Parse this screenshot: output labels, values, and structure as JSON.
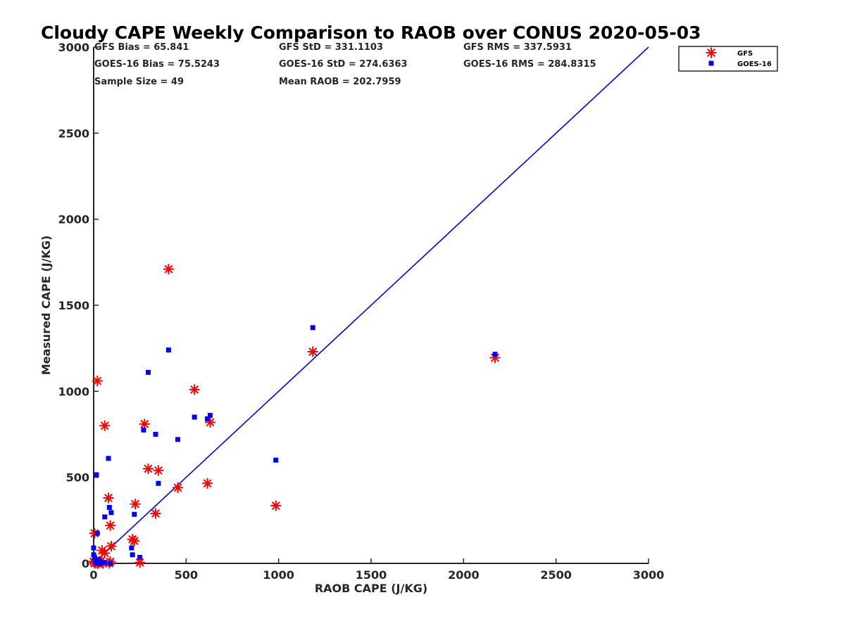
{
  "chart_data": {
    "type": "scatter",
    "title": "Cloudy CAPE Weekly Comparison to RAOB over CONUS 2020-05-03",
    "xlabel": "RAOB CAPE (J/KG)",
    "ylabel": "Measured CAPE (J/KG)",
    "xlim": [
      0,
      3000
    ],
    "ylim": [
      0,
      3000
    ],
    "xticks": [
      "0",
      "500",
      "1000",
      "1500",
      "2000",
      "2500",
      "3000"
    ],
    "yticks": [
      "0",
      "500",
      "1000",
      "1500",
      "2000",
      "2500",
      "3000"
    ],
    "grid": false,
    "legend_position": "top-right, outside plot",
    "stats": {
      "gfs_bias": "GFS Bias = 65.841",
      "gfs_std": "GFS StD = 331.1103",
      "gfs_rms": "GFS RMS = 337.5931",
      "goes_bias": "GOES-16 Bias = 75.5243",
      "goes_std": "GOES-16 StD = 274.6363",
      "goes_rms": "GOES-16 RMS = 284.8315",
      "sample_size": "Sample Size = 49",
      "mean_raob": "Mean RAOB = 202.7959"
    },
    "reference_line": {
      "color": "#0000ee",
      "points": [
        [
          0,
          0
        ],
        [
          3000,
          3000
        ]
      ]
    },
    "series": [
      {
        "name": "GFS",
        "marker": "asterisk",
        "color": "#ff0000",
        "points": [
          [
            0,
            10
          ],
          [
            5,
            0
          ],
          [
            10,
            5
          ],
          [
            15,
            20
          ],
          [
            20,
            0
          ],
          [
            25,
            0
          ],
          [
            30,
            10
          ],
          [
            40,
            15
          ],
          [
            45,
            75
          ],
          [
            50,
            0
          ],
          [
            60,
            60
          ],
          [
            85,
            0
          ],
          [
            90,
            10
          ],
          [
            95,
            100
          ],
          [
            5,
            175
          ],
          [
            20,
            1060
          ],
          [
            60,
            800
          ],
          [
            80,
            380
          ],
          [
            90,
            220
          ],
          [
            210,
            140
          ],
          [
            220,
            130
          ],
          [
            225,
            345
          ],
          [
            250,
            5
          ],
          [
            275,
            810
          ],
          [
            295,
            550
          ],
          [
            335,
            290
          ],
          [
            350,
            540
          ],
          [
            405,
            1710
          ],
          [
            455,
            440
          ],
          [
            545,
            1010
          ],
          [
            615,
            465
          ],
          [
            630,
            820
          ],
          [
            985,
            335
          ],
          [
            1185,
            1230
          ],
          [
            2170,
            1195
          ]
        ]
      },
      {
        "name": "GOES-16",
        "marker": "square",
        "color": "#0000ff",
        "points": [
          [
            0,
            90
          ],
          [
            0,
            50
          ],
          [
            5,
            30
          ],
          [
            10,
            15
          ],
          [
            15,
            0
          ],
          [
            20,
            5
          ],
          [
            25,
            20
          ],
          [
            30,
            10
          ],
          [
            35,
            0
          ],
          [
            50,
            5
          ],
          [
            60,
            5
          ],
          [
            90,
            0
          ],
          [
            15,
            515
          ],
          [
            20,
            175
          ],
          [
            60,
            270
          ],
          [
            80,
            610
          ],
          [
            85,
            325
          ],
          [
            95,
            295
          ],
          [
            205,
            90
          ],
          [
            210,
            50
          ],
          [
            220,
            285
          ],
          [
            250,
            35
          ],
          [
            270,
            775
          ],
          [
            295,
            1110
          ],
          [
            335,
            750
          ],
          [
            350,
            465
          ],
          [
            405,
            1240
          ],
          [
            455,
            720
          ],
          [
            545,
            850
          ],
          [
            615,
            840
          ],
          [
            630,
            860
          ],
          [
            985,
            600
          ],
          [
            1185,
            1370
          ],
          [
            2170,
            1215
          ]
        ]
      }
    ]
  }
}
